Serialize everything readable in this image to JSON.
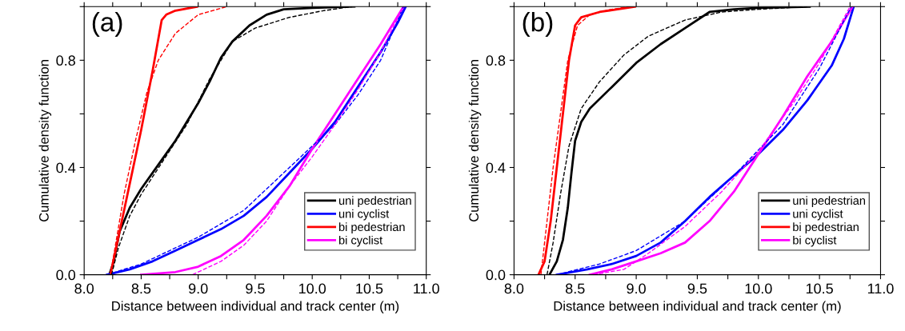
{
  "chart_data": [
    {
      "type": "line",
      "annotations": [
        "(a)"
      ],
      "xlabel": "Distance between individual and track center (m)",
      "ylabel": "Cumulative density function",
      "xlim": [
        8.0,
        11.0
      ],
      "xticks": [
        {
          "value": 8.0,
          "label": "8.0"
        },
        {
          "value": 8.25,
          "label": null
        },
        {
          "value": 8.5,
          "label": "8.5"
        },
        {
          "value": 8.75,
          "label": null
        },
        {
          "value": 9.0,
          "label": "9.0"
        },
        {
          "value": 9.25,
          "label": null
        },
        {
          "value": 9.5,
          "label": "9.5"
        },
        {
          "value": 9.75,
          "label": null
        },
        {
          "value": 10.0,
          "label": "10.0"
        },
        {
          "value": 10.25,
          "label": null
        },
        {
          "value": 10.5,
          "label": "10.5"
        },
        {
          "value": 10.75,
          "label": null
        },
        {
          "value": 11.0,
          "label": "11.0"
        }
      ],
      "ylim": [
        0.0,
        1.0
      ],
      "yticks": [
        {
          "value": 0.0,
          "label": "0.0"
        },
        {
          "value": 0.2,
          "label": null
        },
        {
          "value": 0.4,
          "label": "0.4"
        },
        {
          "value": 0.6,
          "label": null
        },
        {
          "value": 0.8,
          "label": "0.8"
        },
        {
          "value": 1.0,
          "label": null
        }
      ],
      "legend": "bottom right",
      "grid": false,
      "marker": "none",
      "series": [
        {
          "name": "uni pedestrian",
          "color": "#000000",
          "line_style": "solid",
          "x": [
            8.22,
            8.26,
            8.31,
            8.4,
            8.5,
            8.65,
            8.8,
            9.0,
            9.1,
            9.2,
            9.3,
            9.45,
            9.6,
            9.75,
            10.0,
            10.37
          ],
          "values": [
            0,
            0.05,
            0.16,
            0.25,
            0.32,
            0.41,
            0.5,
            0.64,
            0.72,
            0.81,
            0.87,
            0.93,
            0.97,
            0.99,
            0.995,
            1.0
          ]
        },
        {
          "name": "uni cyclist",
          "color": "#0000ff",
          "line_style": "solid",
          "x": [
            8.2,
            8.4,
            8.6,
            8.8,
            9.0,
            9.2,
            9.4,
            9.6,
            9.8,
            10.0,
            10.2,
            10.4,
            10.6,
            10.75,
            10.82
          ],
          "values": [
            0,
            0.02,
            0.05,
            0.09,
            0.13,
            0.17,
            0.22,
            0.29,
            0.38,
            0.47,
            0.57,
            0.7,
            0.83,
            0.94,
            1.0
          ]
        },
        {
          "name": "bi pedestrian",
          "color": "#ff0000",
          "line_style": "solid",
          "x": [
            8.23,
            8.3,
            8.4,
            8.5,
            8.6,
            8.68,
            8.72,
            8.8,
            8.99
          ],
          "values": [
            0,
            0.14,
            0.34,
            0.54,
            0.76,
            0.95,
            0.97,
            0.985,
            1.0
          ]
        },
        {
          "name": "bi cyclist",
          "color": "#ff00ff",
          "line_style": "solid",
          "x": [
            8.5,
            8.8,
            9.0,
            9.2,
            9.4,
            9.6,
            9.8,
            10.0,
            10.2,
            10.4,
            10.6,
            10.8
          ],
          "values": [
            0,
            0.01,
            0.03,
            0.07,
            0.13,
            0.22,
            0.33,
            0.47,
            0.6,
            0.73,
            0.86,
            1.0
          ]
        },
        {
          "color": "#000000",
          "line_style": "dashed",
          "x": [
            8.24,
            8.3,
            8.4,
            8.5,
            8.7,
            8.9,
            9.1,
            9.3,
            9.5,
            9.8,
            10.1,
            10.35
          ],
          "values": [
            0,
            0.1,
            0.22,
            0.3,
            0.43,
            0.56,
            0.73,
            0.87,
            0.92,
            0.96,
            0.985,
            1.0
          ]
        },
        {
          "color": "#0000ff",
          "line_style": "dashed",
          "x": [
            8.2,
            8.5,
            9.0,
            9.4,
            9.8,
            10.2,
            10.4,
            10.6,
            10.8
          ],
          "values": [
            0,
            0.04,
            0.14,
            0.24,
            0.4,
            0.56,
            0.67,
            0.8,
            1.0
          ]
        },
        {
          "color": "#ff0000",
          "line_style": "dashed",
          "x": [
            8.23,
            8.27,
            8.35,
            8.45,
            8.55,
            8.65,
            8.8,
            9.0,
            9.25
          ],
          "values": [
            0,
            0.1,
            0.3,
            0.5,
            0.68,
            0.8,
            0.9,
            0.97,
            1.0
          ]
        },
        {
          "color": "#ff00ff",
          "line_style": "dashed",
          "x": [
            8.95,
            9.2,
            9.4,
            9.6,
            9.8,
            10.0,
            10.2,
            10.4,
            10.6,
            10.8
          ],
          "values": [
            0,
            0.05,
            0.11,
            0.2,
            0.33,
            0.44,
            0.56,
            0.69,
            0.83,
            1.0
          ]
        }
      ]
    },
    {
      "type": "line",
      "annotations": [
        "(b)"
      ],
      "xlabel": "Distance between individual and track center (m)",
      "ylabel": "Cumulative density function",
      "xlim": [
        8.0,
        11.0
      ],
      "xticks": [
        {
          "value": 8.0,
          "label": "8.0"
        },
        {
          "value": 8.25,
          "label": null
        },
        {
          "value": 8.5,
          "label": "8.5"
        },
        {
          "value": 8.75,
          "label": null
        },
        {
          "value": 9.0,
          "label": "9.0"
        },
        {
          "value": 9.25,
          "label": null
        },
        {
          "value": 9.5,
          "label": "9.5"
        },
        {
          "value": 9.75,
          "label": null
        },
        {
          "value": 10.0,
          "label": "10.0"
        },
        {
          "value": 10.25,
          "label": null
        },
        {
          "value": 10.5,
          "label": "10.5"
        },
        {
          "value": 10.75,
          "label": null
        },
        {
          "value": 11.0,
          "label": "11.0"
        }
      ],
      "ylim": [
        0.0,
        1.0
      ],
      "yticks": [
        {
          "value": 0.0,
          "label": "0.0"
        },
        {
          "value": 0.2,
          "label": null
        },
        {
          "value": 0.4,
          "label": "0.4"
        },
        {
          "value": 0.6,
          "label": null
        },
        {
          "value": 0.8,
          "label": "0.8"
        },
        {
          "value": 1.0,
          "label": null
        }
      ],
      "legend": "bottom right",
      "grid": false,
      "marker": "none",
      "series": [
        {
          "name": "uni pedestrian",
          "color": "#000000",
          "line_style": "solid",
          "x": [
            8.29,
            8.35,
            8.4,
            8.44,
            8.47,
            8.5,
            8.55,
            8.62,
            8.8,
            9.0,
            9.2,
            9.4,
            9.6,
            9.8,
            10.0,
            10.42
          ],
          "values": [
            0,
            0.05,
            0.13,
            0.25,
            0.38,
            0.5,
            0.57,
            0.62,
            0.7,
            0.79,
            0.86,
            0.92,
            0.98,
            0.99,
            0.995,
            1.0
          ]
        },
        {
          "name": "uni cyclist",
          "color": "#0000ff",
          "line_style": "solid",
          "x": [
            8.35,
            8.6,
            8.8,
            9.0,
            9.2,
            9.4,
            9.6,
            9.8,
            10.0,
            10.2,
            10.4,
            10.6,
            10.7,
            10.78
          ],
          "values": [
            0,
            0.02,
            0.04,
            0.07,
            0.12,
            0.2,
            0.29,
            0.37,
            0.45,
            0.54,
            0.65,
            0.78,
            0.88,
            1.0
          ]
        },
        {
          "name": "bi pedestrian",
          "color": "#ff0000",
          "line_style": "solid",
          "x": [
            8.2,
            8.25,
            8.3,
            8.35,
            8.4,
            8.45,
            8.5,
            8.55,
            8.7,
            8.99
          ],
          "values": [
            0,
            0.05,
            0.2,
            0.4,
            0.6,
            0.8,
            0.93,
            0.96,
            0.98,
            1.0
          ]
        },
        {
          "name": "bi cyclist",
          "color": "#ff00ff",
          "line_style": "solid",
          "x": [
            8.62,
            8.8,
            9.0,
            9.2,
            9.4,
            9.6,
            9.8,
            10.0,
            10.2,
            10.4,
            10.6,
            10.77
          ],
          "values": [
            0,
            0.02,
            0.05,
            0.08,
            0.12,
            0.2,
            0.31,
            0.45,
            0.59,
            0.74,
            0.87,
            1.0
          ]
        },
        {
          "color": "#000000",
          "line_style": "dashed",
          "x": [
            8.27,
            8.32,
            8.38,
            8.45,
            8.55,
            8.7,
            8.9,
            9.1,
            9.4,
            9.7,
            10.0,
            10.4
          ],
          "values": [
            0,
            0.12,
            0.3,
            0.48,
            0.62,
            0.72,
            0.82,
            0.89,
            0.95,
            0.98,
            0.99,
            1.0
          ]
        },
        {
          "color": "#0000ff",
          "line_style": "dashed",
          "x": [
            8.35,
            8.7,
            9.0,
            9.4,
            9.8,
            10.2,
            10.5,
            10.76
          ],
          "values": [
            0,
            0.04,
            0.09,
            0.2,
            0.37,
            0.56,
            0.77,
            1.0
          ]
        },
        {
          "color": "#ff0000",
          "line_style": "dashed",
          "x": [
            8.22,
            8.27,
            8.32,
            8.38,
            8.44,
            8.52,
            8.62,
            8.8,
            8.95
          ],
          "values": [
            0,
            0.2,
            0.4,
            0.6,
            0.8,
            0.93,
            0.97,
            0.99,
            1.0
          ]
        },
        {
          "color": "#ff00ff",
          "line_style": "dashed",
          "x": [
            8.65,
            8.9,
            9.1,
            9.4,
            9.7,
            10.0,
            10.3,
            10.5,
            10.75
          ],
          "values": [
            0,
            0.02,
            0.08,
            0.18,
            0.31,
            0.46,
            0.65,
            0.79,
            1.0
          ]
        }
      ]
    }
  ]
}
